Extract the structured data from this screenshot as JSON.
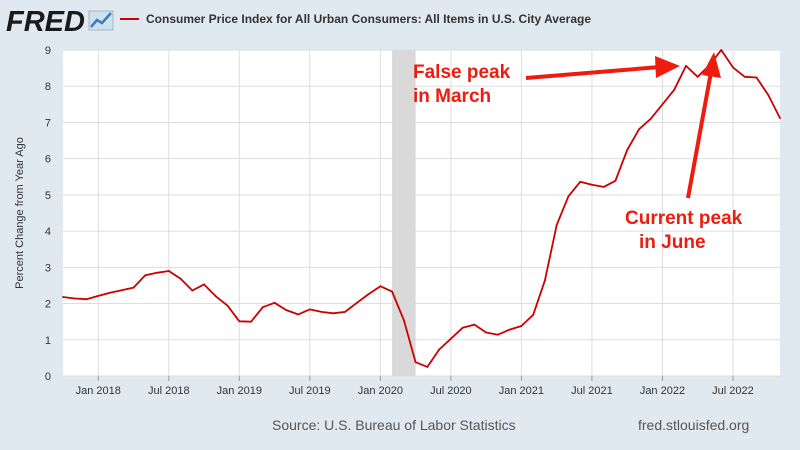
{
  "brand": {
    "logo_text": "FRED",
    "logo_icon": "line-chart-icon"
  },
  "colors": {
    "series": "#cc0000",
    "annotation": "#ee1c0e",
    "recession": "#d9d9d9",
    "plot_bg": "#ffffff",
    "page_bg": "#e1e9f0",
    "grid": "#dddddd"
  },
  "footer": {
    "source": "Source: U.S. Bureau of Labor Statistics",
    "site": "fred.stlouisfed.org"
  },
  "annotations": {
    "false_peak": [
      "False peak",
      "in March"
    ],
    "current_peak": [
      "Current peak",
      "in June"
    ]
  },
  "chart_data": {
    "type": "line",
    "ylabel": "Percent Change from Year Ago",
    "xlabel": "",
    "ylim": [
      0,
      9
    ],
    "yticks": [
      0,
      1,
      2,
      3,
      4,
      5,
      6,
      7,
      8,
      9
    ],
    "xticks": [
      "Jan 2018",
      "Jul 2018",
      "Jan 2019",
      "Jul 2019",
      "Jan 2020",
      "Jul 2020",
      "Jan 2021",
      "Jul 2021",
      "Jan 2022",
      "Jul 2022"
    ],
    "grid": true,
    "legend": "top-left",
    "recession": {
      "start": "2020-02",
      "end": "2020-04"
    },
    "series": [
      {
        "name": "Consumer Price Index for All Urban Consumers: All Items in U.S. City Average",
        "x": [
          "2017-10",
          "2017-11",
          "2017-12",
          "2018-01",
          "2018-02",
          "2018-03",
          "2018-04",
          "2018-05",
          "2018-06",
          "2018-07",
          "2018-08",
          "2018-09",
          "2018-10",
          "2018-11",
          "2018-12",
          "2019-01",
          "2019-02",
          "2019-03",
          "2019-04",
          "2019-05",
          "2019-06",
          "2019-07",
          "2019-08",
          "2019-09",
          "2019-10",
          "2019-11",
          "2019-12",
          "2020-01",
          "2020-02",
          "2020-03",
          "2020-04",
          "2020-05",
          "2020-06",
          "2020-07",
          "2020-08",
          "2020-09",
          "2020-10",
          "2020-11",
          "2020-12",
          "2021-01",
          "2021-02",
          "2021-03",
          "2021-04",
          "2021-05",
          "2021-06",
          "2021-07",
          "2021-08",
          "2021-09",
          "2021-10",
          "2021-11",
          "2021-12",
          "2022-01",
          "2022-02",
          "2022-03",
          "2022-04",
          "2022-05",
          "2022-06",
          "2022-07",
          "2022-08",
          "2022-09",
          "2022-10",
          "2022-11"
        ],
        "values": [
          2.18,
          2.14,
          2.12,
          2.21,
          2.3,
          2.37,
          2.44,
          2.78,
          2.85,
          2.9,
          2.69,
          2.36,
          2.53,
          2.2,
          1.94,
          1.51,
          1.5,
          1.9,
          2.02,
          1.82,
          1.7,
          1.84,
          1.77,
          1.73,
          1.77,
          2.02,
          2.26,
          2.48,
          2.33,
          1.54,
          0.38,
          0.25,
          0.73,
          1.03,
          1.33,
          1.42,
          1.2,
          1.14,
          1.28,
          1.38,
          1.69,
          2.64,
          4.17,
          4.96,
          5.36,
          5.28,
          5.22,
          5.39,
          6.24,
          6.81,
          7.1,
          7.5,
          7.9,
          8.56,
          8.26,
          8.58,
          9.0,
          8.52,
          8.26,
          8.24,
          7.76,
          7.12
        ]
      }
    ]
  }
}
